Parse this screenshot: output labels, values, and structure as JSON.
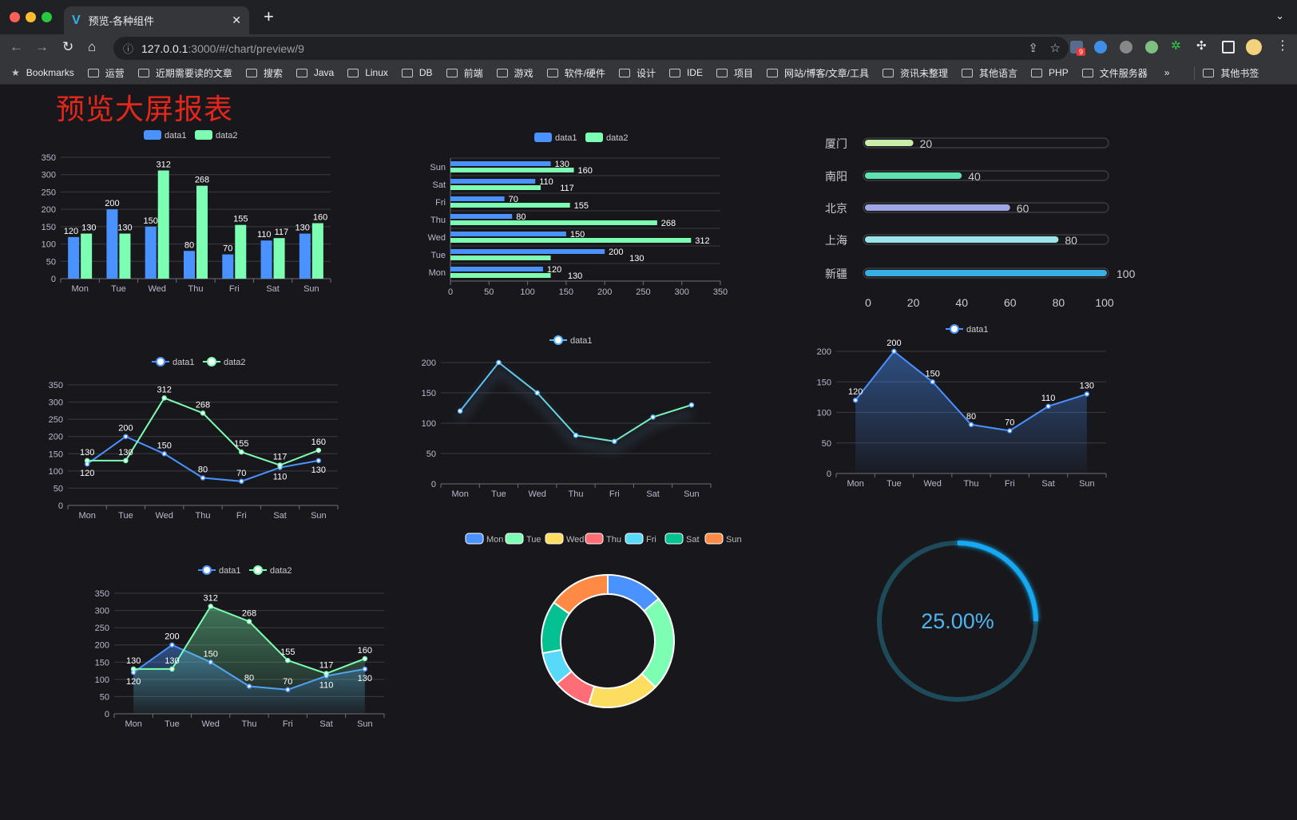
{
  "browser": {
    "tab_title": "预览-各种组件",
    "url_host": "127.0.0.1",
    "url_rest": ":3000/#/chart/preview/9",
    "extension_badge": "9",
    "bookmarks": [
      "Bookmarks",
      "运营",
      "近期需要读的文章",
      "搜索",
      "Java",
      "Linux",
      "DB",
      "前端",
      "游戏",
      "软件/硬件",
      "设计",
      "IDE",
      "项目",
      "网站/博客/文章/工具",
      "资讯未整理",
      "其他语言",
      "PHP",
      "文件服务器"
    ],
    "more": "»",
    "other_bookmarks": "其他书签"
  },
  "page": {
    "title": "预览大屏报表",
    "title_color": "#e5261b"
  },
  "chart_data": [
    {
      "type": "bar",
      "legend": [
        "data1",
        "data2"
      ],
      "categories": [
        "Mon",
        "Tue",
        "Wed",
        "Thu",
        "Fri",
        "Sat",
        "Sun"
      ],
      "series": [
        {
          "name": "data1",
          "values": [
            120,
            200,
            150,
            80,
            70,
            110,
            130
          ],
          "color": "#4992ff"
        },
        {
          "name": "data2",
          "values": [
            130,
            130,
            312,
            268,
            155,
            117,
            160
          ],
          "color": "#7cffb2"
        }
      ],
      "ylim": [
        0,
        350
      ],
      "ticks": [
        0,
        50,
        100,
        150,
        200,
        250,
        300,
        350
      ],
      "data_labels": true,
      "legend_position": "top"
    },
    {
      "type": "bar",
      "orientation": "horizontal",
      "legend": [
        "data1",
        "data2"
      ],
      "categories": [
        "Mon",
        "Tue",
        "Wed",
        "Thu",
        "Fri",
        "Sat",
        "Sun"
      ],
      "series": [
        {
          "name": "data1",
          "values": [
            120,
            200,
            150,
            80,
            70,
            110,
            130
          ],
          "color": "#4992ff"
        },
        {
          "name": "data2",
          "values": [
            130,
            130,
            312,
            268,
            155,
            117,
            160
          ],
          "color": "#7cffb2"
        }
      ],
      "xlim": [
        0,
        350
      ],
      "ticks": [
        0,
        50,
        100,
        150,
        200,
        250,
        300,
        350
      ],
      "data_labels": true,
      "legend_position": "top"
    },
    {
      "type": "progress",
      "categories": [
        "厦门",
        "南阳",
        "北京",
        "上海",
        "新疆"
      ],
      "values": [
        20,
        40,
        60,
        80,
        100
      ],
      "colors": [
        "#c8eeaa",
        "#5ee2b0",
        "#9ea6e6",
        "#9ae4ea",
        "#3aaee2"
      ],
      "xlim": [
        0,
        100
      ],
      "ticks": [
        0,
        20,
        40,
        60,
        80,
        100
      ]
    },
    {
      "type": "line",
      "legend": [
        "data1",
        "data2"
      ],
      "categories": [
        "Mon",
        "Tue",
        "Wed",
        "Thu",
        "Fri",
        "Sat",
        "Sun"
      ],
      "series": [
        {
          "name": "data1",
          "values": [
            120,
            200,
            150,
            80,
            70,
            110,
            130
          ],
          "color": "#4992ff"
        },
        {
          "name": "data2",
          "values": [
            130,
            130,
            312,
            268,
            155,
            117,
            160
          ],
          "color": "#7cffb2"
        }
      ],
      "ylim": [
        0,
        350
      ],
      "ticks": [
        0,
        50,
        100,
        150,
        200,
        250,
        300,
        350
      ],
      "data_labels": true,
      "legend_position": "top"
    },
    {
      "type": "line",
      "legend": [
        "data1"
      ],
      "categories": [
        "Mon",
        "Tue",
        "Wed",
        "Thu",
        "Fri",
        "Sat",
        "Sun"
      ],
      "series": [
        {
          "name": "data1",
          "values": [
            120,
            200,
            150,
            80,
            70,
            110,
            130
          ],
          "color": "#58b7ff",
          "gradient_end": "#7cffb2"
        }
      ],
      "ylim": [
        0,
        200
      ],
      "ticks": [
        0,
        50,
        100,
        150,
        200
      ],
      "data_labels": false,
      "shadow": true,
      "legend_position": "top"
    },
    {
      "type": "area",
      "legend": [
        "data1"
      ],
      "categories": [
        "Mon",
        "Tue",
        "Wed",
        "Thu",
        "Fri",
        "Sat",
        "Sun"
      ],
      "series": [
        {
          "name": "data1",
          "values": [
            120,
            200,
            150,
            80,
            70,
            110,
            130
          ],
          "color": "#4992ff"
        }
      ],
      "ylim": [
        0,
        200
      ],
      "ticks": [
        0,
        50,
        100,
        150,
        200
      ],
      "data_labels": true,
      "legend_position": "top"
    },
    {
      "type": "area",
      "legend": [
        "data1",
        "data2"
      ],
      "categories": [
        "Mon",
        "Tue",
        "Wed",
        "Thu",
        "Fri",
        "Sat",
        "Sun"
      ],
      "series": [
        {
          "name": "data1",
          "values": [
            120,
            200,
            150,
            80,
            70,
            110,
            130
          ],
          "color": "#4992ff"
        },
        {
          "name": "data2",
          "values": [
            130,
            130,
            312,
            268,
            155,
            117,
            160
          ],
          "color": "#7cffb2"
        }
      ],
      "ylim": [
        0,
        350
      ],
      "ticks": [
        0,
        50,
        100,
        150,
        200,
        250,
        300,
        350
      ],
      "data_labels": true,
      "legend_position": "top"
    },
    {
      "type": "pie",
      "donut": true,
      "categories": [
        "Mon",
        "Tue",
        "Wed",
        "Thu",
        "Fri",
        "Sat",
        "Sun"
      ],
      "values": [
        120,
        200,
        150,
        80,
        70,
        110,
        130
      ],
      "colors": [
        "#4992ff",
        "#7cffb2",
        "#fddd60",
        "#ff6e76",
        "#58d9f9",
        "#05c091",
        "#ff8a45"
      ],
      "legend_position": "top"
    },
    {
      "type": "gauge",
      "value": 25,
      "max": 100,
      "label": "25.00%",
      "color": "#12a9f2",
      "track_color": "#1e4b59"
    }
  ]
}
